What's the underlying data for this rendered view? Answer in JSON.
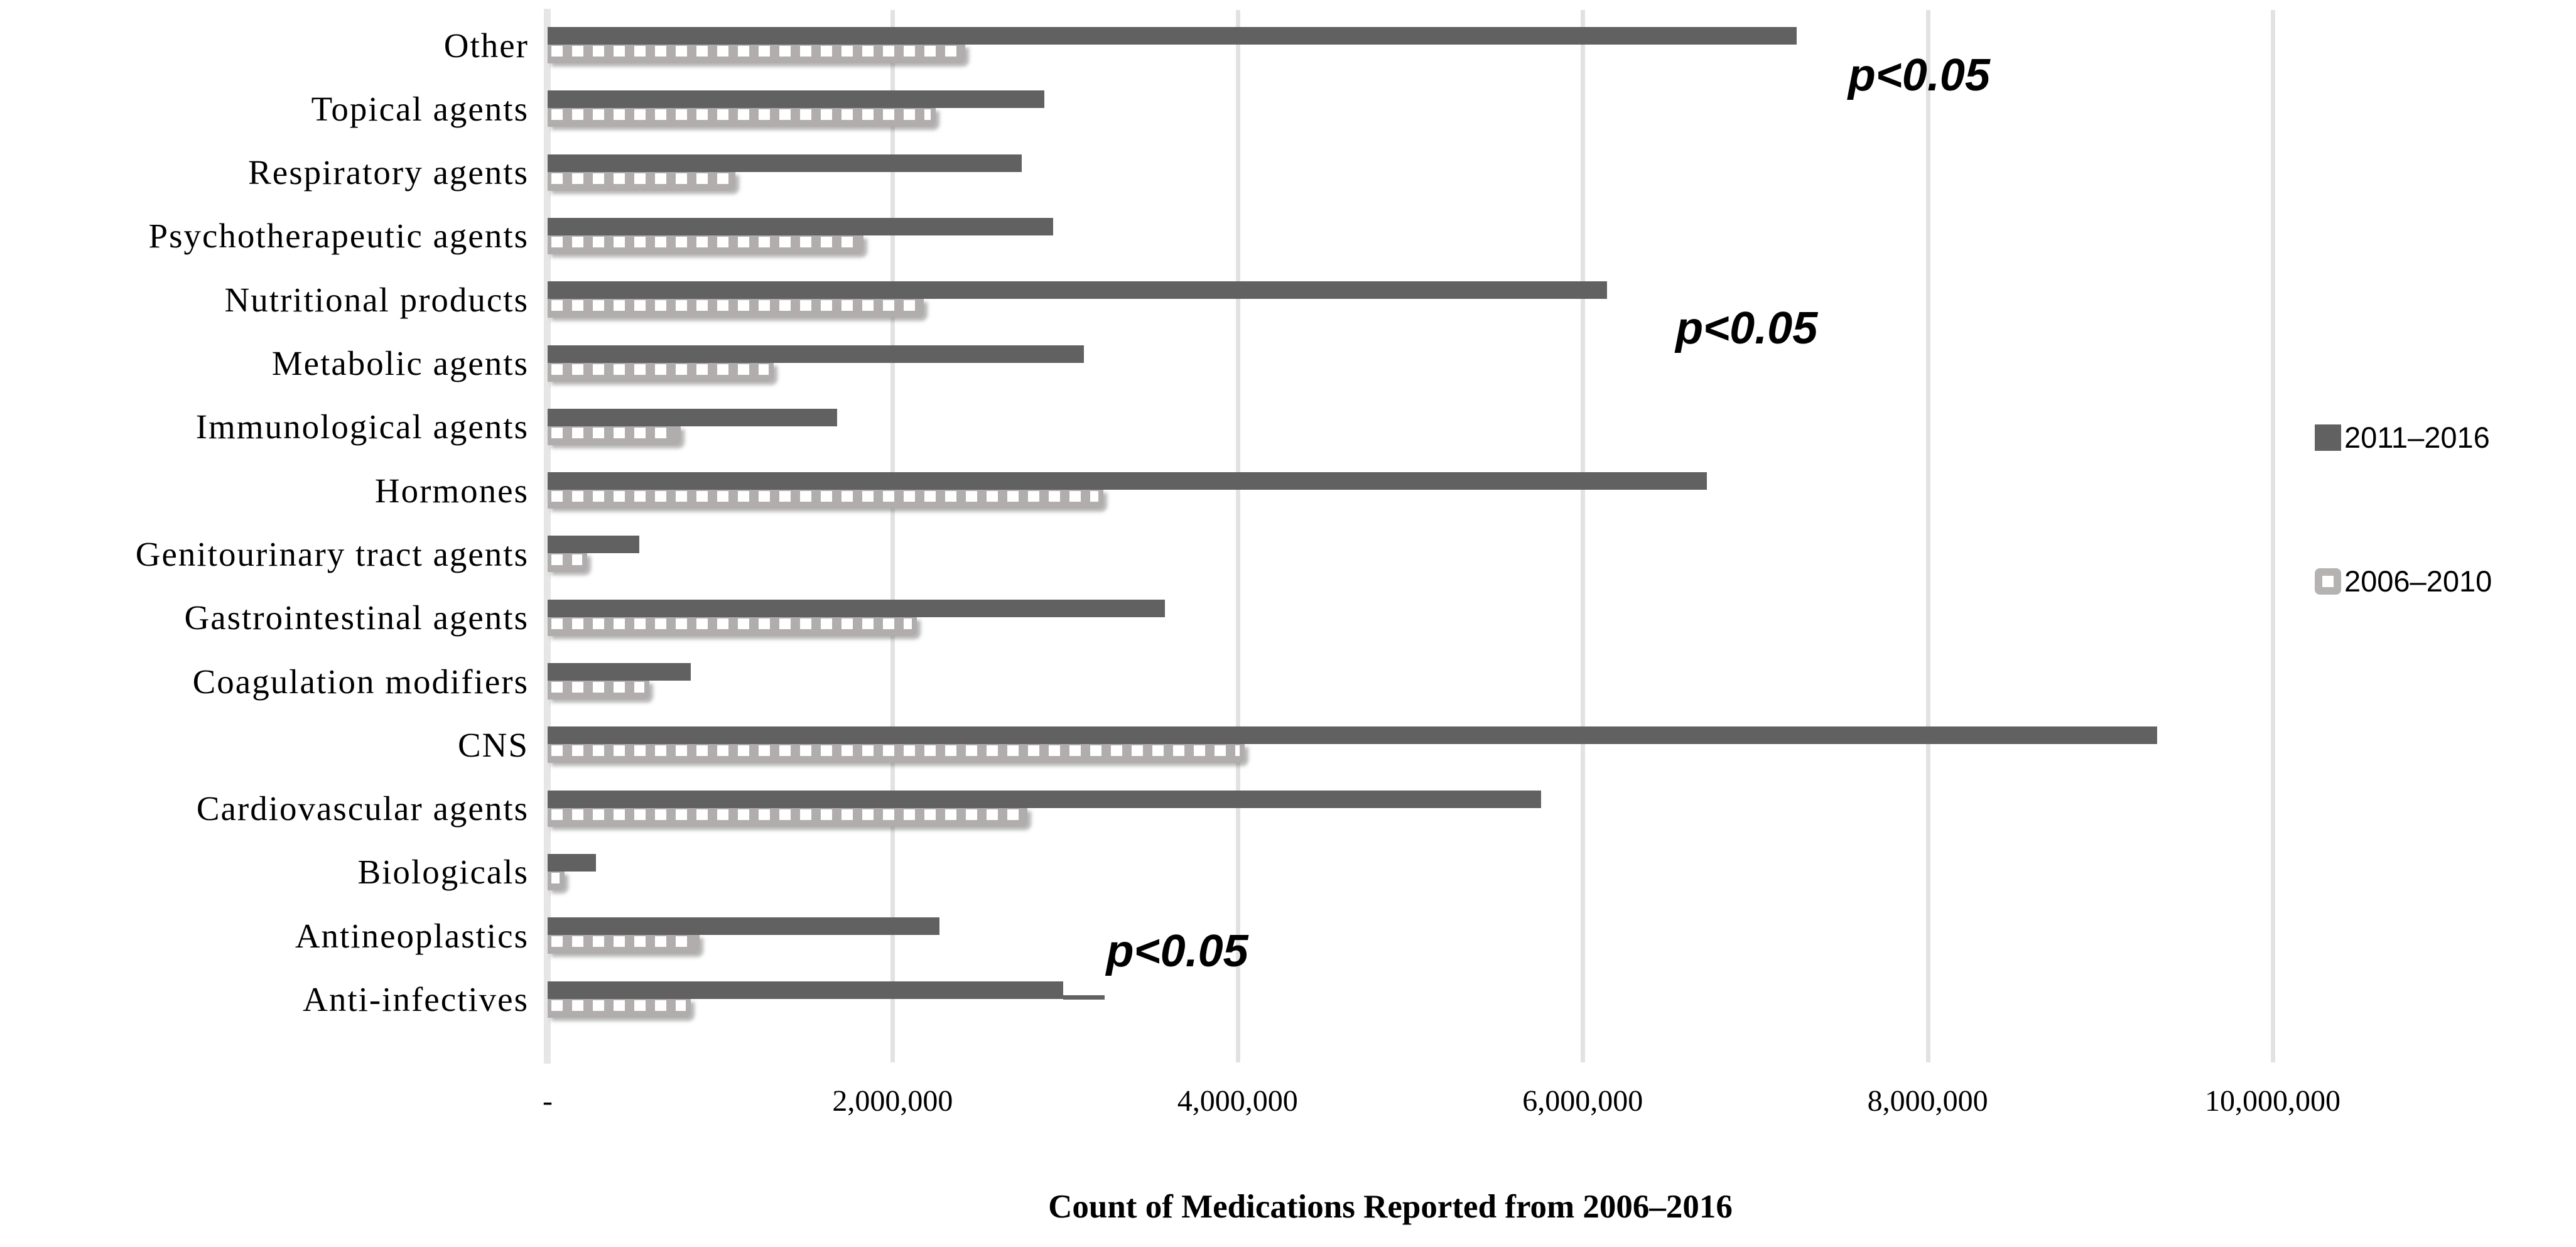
{
  "chart_data": {
    "type": "bar",
    "orientation": "horizontal",
    "title": "",
    "xlabel": "Count of Medications Reported from 2006–2016",
    "ylabel": "",
    "grid": "vertical",
    "legend_position": "right",
    "xlim": [
      0,
      11770000
    ],
    "categories": [
      "Other",
      "Topical agents",
      "Respiratory agents",
      "Psychotherapeutic agents",
      "Nutritional products",
      "Metabolic agents",
      "Immunological agents",
      "Hormones",
      "Genitourinary tract agents",
      "Gastrointestinal agents",
      "Coagulation modifiers",
      "CNS",
      "Cardiovascular agents",
      "Biologicals",
      "Antineoplastics",
      "Anti-infectives"
    ],
    "series": [
      {
        "name": "2011–2016",
        "style": "solid",
        "color": "#616161",
        "values": [
          7240000,
          2880000,
          2750000,
          2930000,
          6140000,
          3110000,
          1680000,
          6720000,
          530000,
          3580000,
          830000,
          9330000,
          5760000,
          280000,
          2270000,
          2990000
        ]
      },
      {
        "name": "2006–2010",
        "style": "white-dashed",
        "color": "#B1ADAD",
        "values": [
          2420000,
          2250000,
          1090000,
          1830000,
          2180000,
          1310000,
          770000,
          3220000,
          230000,
          2140000,
          590000,
          4040000,
          2780000,
          100000,
          880000,
          830000
        ]
      }
    ],
    "x_ticks": [
      {
        "label": "-",
        "value": 0
      },
      {
        "label": "2,000,000",
        "value": 2000000
      },
      {
        "label": "4,000,000",
        "value": 4000000
      },
      {
        "label": "6,000,000",
        "value": 6000000
      },
      {
        "label": "8,000,000",
        "value": 8000000
      },
      {
        "label": "10,000,000",
        "value": 10000000
      }
    ],
    "annotations": [
      {
        "text": "p<0.05",
        "x_value": 7950000,
        "row": 0.76
      },
      {
        "text": "p<0.05",
        "x_value": 6950000,
        "row": 4.74
      },
      {
        "text": "p<0.05",
        "x_value": 3650000,
        "row": 14.53
      }
    ],
    "extras": {
      "anti_infectives_tail": {
        "row": 15,
        "from_value": 2990000,
        "to_value": 3230000
      }
    }
  },
  "colors": {
    "dark_series": "#616161",
    "light_series": "#B1ADAD",
    "dash": "#FFFFFF",
    "gridline": "#E2E2E2",
    "axis_line": "#E6E6E6",
    "text": "#000000"
  }
}
